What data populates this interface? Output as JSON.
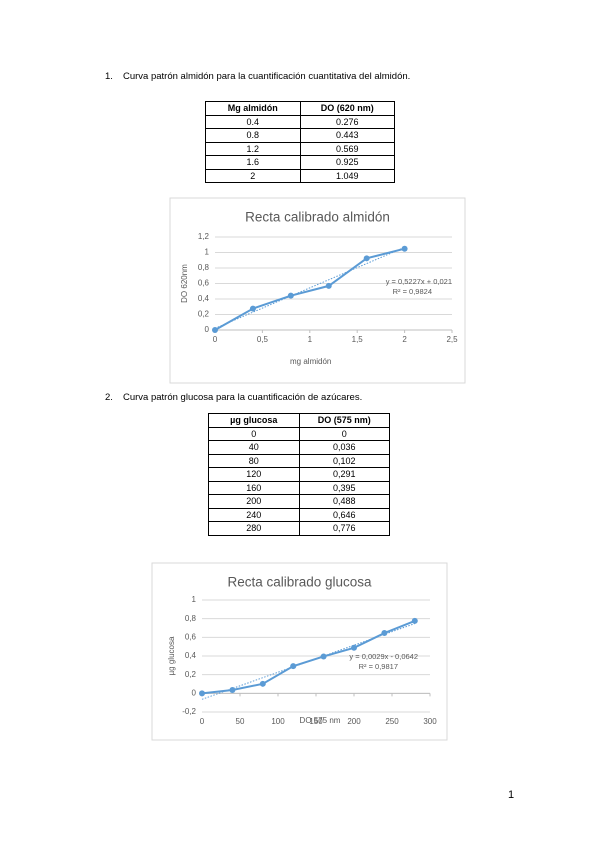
{
  "document": {
    "items": [
      {
        "number": "1.",
        "text": "Curva patrón almidón para la cuantificación cuantitativa del almidón.",
        "table": {
          "header": [
            "Mg almidón",
            "DO (620 nm)"
          ],
          "rows": [
            [
              "0.4",
              "0.276"
            ],
            [
              "0.8",
              "0.443"
            ],
            [
              "1.2",
              "0.569"
            ],
            [
              "1.6",
              "0.925"
            ],
            [
              "2",
              "1.049"
            ]
          ]
        }
      },
      {
        "number": "2.",
        "text": "Curva patrón glucosa para la cuantificación de azúcares.",
        "table": {
          "header": [
            "µg glucosa",
            "DO (575 nm)"
          ],
          "rows": [
            [
              "0",
              "0"
            ],
            [
              "40",
              "0,036"
            ],
            [
              "80",
              "0,102"
            ],
            [
              "120",
              "0,291"
            ],
            [
              "160",
              "0,395"
            ],
            [
              "200",
              "0,488"
            ],
            [
              "240",
              "0,646"
            ],
            [
              "280",
              "0,776"
            ]
          ]
        }
      }
    ],
    "page_number": "1"
  },
  "chart_data": [
    {
      "type": "line",
      "title": "Recta calibrado almidón",
      "x_label": "mg almidón",
      "y_label": "DO 620nm",
      "x": [
        0,
        0.4,
        0.8,
        1.2,
        1.6,
        2
      ],
      "values": [
        0,
        0.276,
        0.443,
        0.569,
        0.925,
        1.049
      ],
      "color": "#5b9bd5",
      "trendline": true,
      "annotations": [
        "y = 0,5227x + 0,021",
        "R² = 0,9824"
      ],
      "xlim": [
        0,
        2.5
      ],
      "xticks": [
        0,
        {
          "value": 0.5,
          "label": "0,5"
        },
        1,
        {
          "value": 1.5,
          "label": "1,5"
        },
        2,
        {
          "value": 2.5,
          "label": "2,5"
        }
      ],
      "ylim": [
        0,
        1.2
      ],
      "yticks": [
        0,
        {
          "value": 0.2,
          "label": "0,2"
        },
        {
          "value": 0.4,
          "label": "0,4"
        },
        {
          "value": 0.6,
          "label": "0,6"
        },
        {
          "value": 0.8,
          "label": "0,8"
        },
        1,
        {
          "value": 1.2,
          "label": "1,2"
        }
      ],
      "grid": true
    },
    {
      "type": "line",
      "title": "Recta calibrado glucosa",
      "x_label": "DO 575 nm",
      "y_label": "µg glucosa",
      "x": [
        0,
        40,
        80,
        120,
        160,
        200,
        240,
        280
      ],
      "values": [
        0,
        0.036,
        0.102,
        0.291,
        0.395,
        0.488,
        0.646,
        0.776
      ],
      "color": "#5b9bd5",
      "trendline": true,
      "annotations": [
        "y = 0,0029x - 0,0642",
        "R² = 0,9817"
      ],
      "xlim": [
        0,
        300
      ],
      "xticks": [
        0,
        50,
        100,
        150,
        200,
        250,
        300
      ],
      "ylim": [
        -0.2,
        1
      ],
      "yticks": [
        {
          "value": -0.2,
          "label": "-0,2"
        },
        0,
        {
          "value": 0.2,
          "label": "0,2"
        },
        {
          "value": 0.4,
          "label": "0,4"
        },
        {
          "value": 0.6,
          "label": "0,6"
        },
        {
          "value": 0.8,
          "label": "0,8"
        },
        1
      ],
      "grid": true
    }
  ]
}
